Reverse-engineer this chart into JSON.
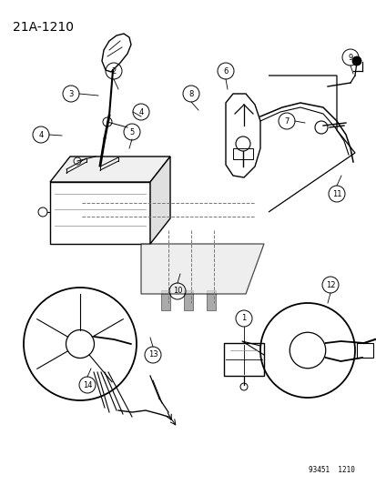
{
  "title": "21A-1210",
  "bottom_code": "93451  1210",
  "bg_color": "#ffffff",
  "fig_width": 4.14,
  "fig_height": 5.33,
  "dpi": 100
}
